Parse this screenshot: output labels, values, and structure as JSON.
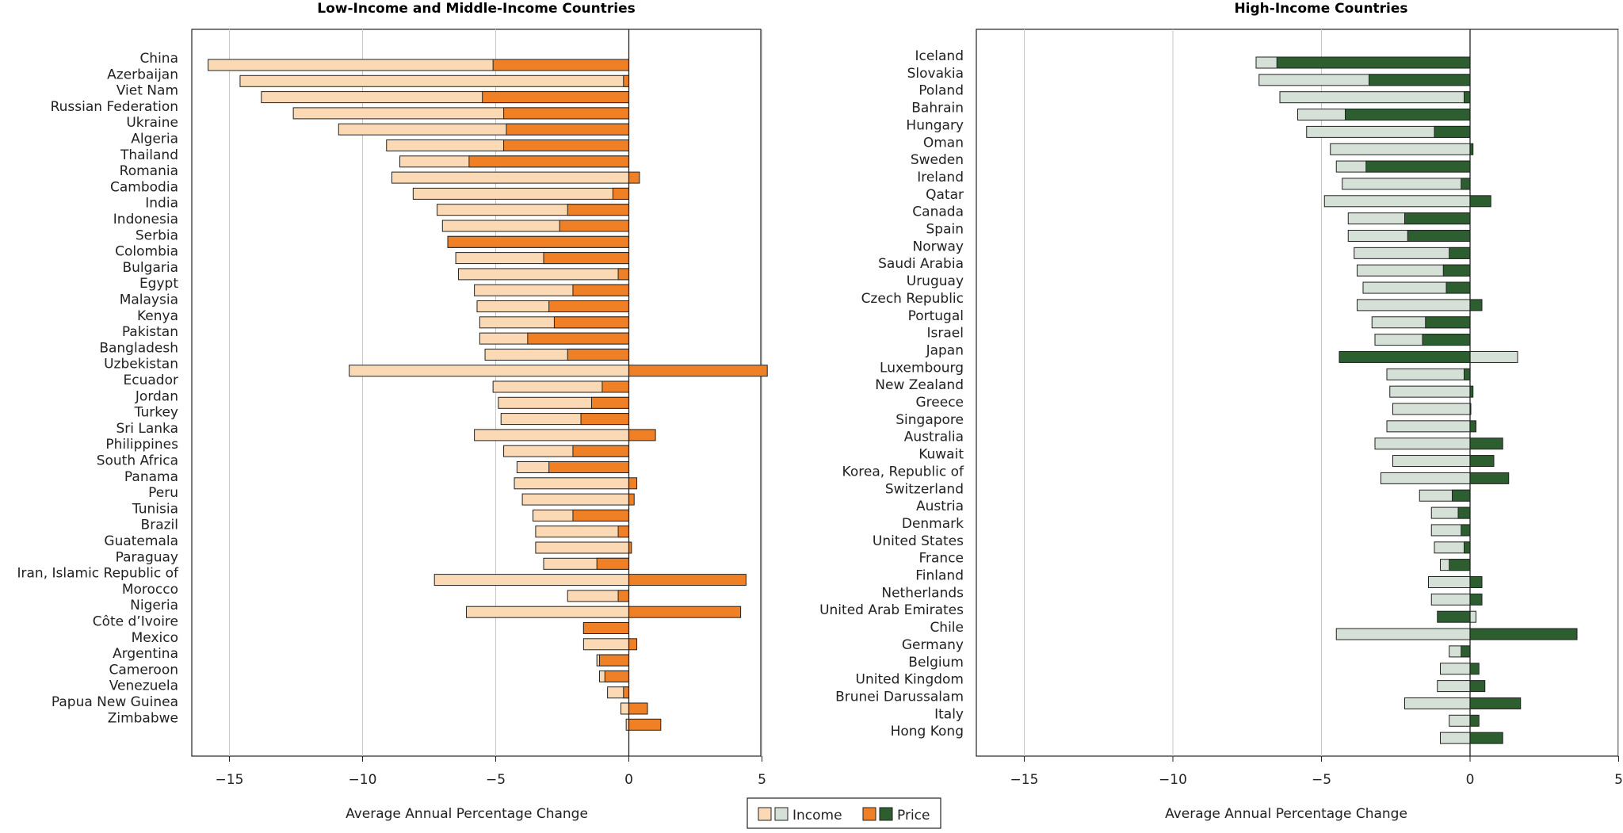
{
  "xlabel": "Average Annual Percentage Change",
  "legend": {
    "income_label": "Income",
    "price_label": "Price"
  },
  "colors": {
    "left_income": "#fcd9b5",
    "left_price": "#f08026",
    "right_income": "#d5e0d6",
    "right_price": "#2d5e30",
    "gridline": "#c8c8c8",
    "axis": "#222222"
  },
  "chart_data": [
    {
      "type": "bar",
      "orientation": "horizontal",
      "stacking": "overlay",
      "title": "Low-Income and Middle-Income Countries",
      "xlabel": "Average Annual Percentage Change",
      "xlim": [
        -16.5,
        5
      ],
      "xticks": [
        -15,
        -10,
        -5,
        0,
        5
      ],
      "grid": true,
      "series_names": [
        "Income",
        "Price"
      ],
      "categories": [
        "China",
        "Azerbaijan",
        "Viet Nam",
        "Russian Federation",
        "Ukraine",
        "Algeria",
        "Thailand",
        "Romania",
        "Cambodia",
        "India",
        "Indonesia",
        "Serbia",
        "Colombia",
        "Bulgaria",
        "Egypt",
        "Malaysia",
        "Kenya",
        "Pakistan",
        "Bangladesh",
        "Uzbekistan",
        "Ecuador",
        "Jordan",
        "Turkey",
        "Sri Lanka",
        "Philippines",
        "South Africa",
        "Panama",
        "Peru",
        "Tunisia",
        "Brazil",
        "Guatemala",
        "Paraguay",
        "Iran, Islamic Republic of",
        "Morocco",
        "Nigeria",
        "Côte d’Ivoire",
        "Mexico",
        "Argentina",
        "Cameroon",
        "Venezuela",
        "Papua New Guinea",
        "Zimbabwe"
      ],
      "income": [
        -15.8,
        -14.6,
        -13.8,
        -12.6,
        -10.9,
        -9.1,
        -8.6,
        -8.9,
        -8.1,
        -7.2,
        -7.0,
        -6.8,
        -6.5,
        -6.4,
        -5.8,
        -5.7,
        -5.6,
        -5.6,
        -5.4,
        -10.5,
        -5.1,
        -4.9,
        -4.8,
        -5.8,
        -4.7,
        -4.2,
        -4.3,
        -4.0,
        -3.6,
        -3.5,
        -3.5,
        -3.2,
        -7.3,
        -2.3,
        -6.1,
        -1.7,
        -1.7,
        -1.2,
        -1.1,
        -0.8,
        -0.3,
        -0.1
      ],
      "price": [
        -5.1,
        -0.2,
        -5.5,
        -4.7,
        -4.6,
        -4.7,
        -6.0,
        0.4,
        -0.6,
        -2.3,
        -2.6,
        -6.8,
        -3.2,
        -0.4,
        -2.1,
        -3.0,
        -2.8,
        -3.8,
        -2.3,
        5.2,
        -1.0,
        -1.4,
        -1.8,
        1.0,
        -2.1,
        -3.0,
        0.3,
        0.2,
        -2.1,
        -0.4,
        0.1,
        -1.2,
        4.4,
        -0.4,
        4.2,
        -1.7,
        0.3,
        -1.1,
        -0.9,
        -0.2,
        0.7,
        1.2
      ]
    },
    {
      "type": "bar",
      "orientation": "horizontal",
      "stacking": "overlay",
      "title": "High-Income Countries",
      "xlabel": "Average Annual Percentage Change",
      "xlim": [
        -16.5,
        5
      ],
      "xticks": [
        -15,
        -10,
        -5,
        0,
        5
      ],
      "grid": true,
      "series_names": [
        "Income",
        "Price"
      ],
      "categories": [
        "Iceland",
        "Slovakia",
        "Poland",
        "Bahrain",
        "Hungary",
        "Oman",
        "Sweden",
        "Ireland",
        "Qatar",
        "Canada",
        "Spain",
        "Norway",
        "Saudi Arabia",
        "Uruguay",
        "Czech Republic",
        "Portugal",
        "Israel",
        "Japan",
        "Luxembourg",
        "New Zealand",
        "Greece",
        "Singapore",
        "Australia",
        "Kuwait",
        "Korea, Republic of",
        "Switzerland",
        "Austria",
        "Denmark",
        "United States",
        "France",
        "Finland",
        "Netherlands",
        "United Arab Emirates",
        "Chile",
        "Germany",
        "Belgium",
        "United Kingdom",
        "Brunei Darussalam",
        "Italy",
        "Hong Kong"
      ],
      "income": [
        -7.2,
        -7.1,
        -6.4,
        -5.8,
        -5.5,
        -4.7,
        -4.5,
        -4.3,
        -4.9,
        -4.1,
        -4.1,
        -3.9,
        -3.8,
        -3.6,
        -3.8,
        -3.3,
        -3.2,
        1.6,
        -2.8,
        -2.7,
        -2.6,
        -2.8,
        -3.2,
        -2.6,
        -3.0,
        -1.7,
        -1.3,
        -1.3,
        -1.2,
        -1.0,
        -1.4,
        -1.3,
        0.2,
        -4.5,
        -0.7,
        -1.0,
        -1.1,
        -2.2,
        -0.7,
        -1.0
      ],
      "price": [
        -6.5,
        -3.4,
        -0.2,
        -4.2,
        -1.2,
        0.1,
        -3.5,
        -0.3,
        0.7,
        -2.2,
        -2.1,
        -0.7,
        -0.9,
        -0.8,
        0.4,
        -1.5,
        -1.6,
        -4.4,
        -0.2,
        0.1,
        0.0,
        0.2,
        1.1,
        0.8,
        1.3,
        -0.6,
        -0.4,
        -0.3,
        -0.2,
        -0.7,
        0.4,
        0.4,
        -1.1,
        3.6,
        -0.3,
        0.3,
        0.5,
        1.7,
        0.3,
        1.1
      ]
    }
  ]
}
